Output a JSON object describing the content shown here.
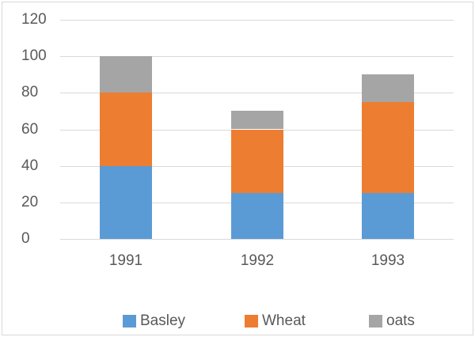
{
  "chart_data": {
    "type": "bar",
    "stacked": true,
    "title": "",
    "xlabel": "",
    "ylabel": "",
    "categories": [
      "1991",
      "1992",
      "1993"
    ],
    "series": [
      {
        "name": "Basley",
        "color": "#5B9BD5",
        "values": [
          40,
          25,
          25
        ]
      },
      {
        "name": "Wheat",
        "color": "#ED7D31",
        "values": [
          40,
          35,
          50
        ]
      },
      {
        "name": "oats",
        "color": "#A5A5A5",
        "values": [
          20,
          10,
          15
        ]
      }
    ],
    "stack_totals": [
      100,
      70,
      90
    ],
    "ylim": [
      0,
      120
    ],
    "y_ticks": [
      0,
      20,
      40,
      60,
      80,
      100,
      120
    ],
    "grid": true,
    "legend_position": "bottom",
    "colors": {
      "axis_text": "#595959",
      "gridline": "#D9D9D9",
      "frame_border": "#D9D9D9",
      "background": "#FFFFFF"
    }
  }
}
